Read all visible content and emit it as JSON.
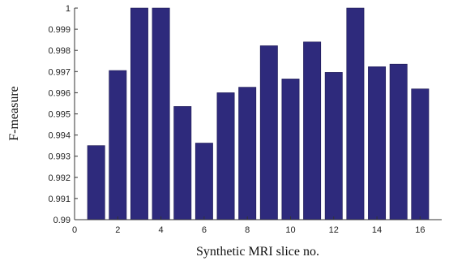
{
  "chart_data": {
    "type": "bar",
    "title": "",
    "xlabel": "Synthetic MRI slice no.",
    "ylabel": "F-measure",
    "xlim": [
      0,
      17
    ],
    "ylim": [
      0.99,
      1
    ],
    "xticks": [
      0,
      2,
      4,
      6,
      8,
      10,
      12,
      14,
      16
    ],
    "yticks": [
      0.99,
      0.991,
      0.992,
      0.993,
      0.994,
      0.995,
      0.996,
      0.997,
      0.998,
      0.999,
      1
    ],
    "ytick_labels": [
      "0.99",
      "0.991",
      "0.992",
      "0.993",
      "0.994",
      "0.995",
      "0.996",
      "0.997",
      "0.998",
      "0.999",
      "1"
    ],
    "categories": [
      1,
      2,
      3,
      4,
      5,
      6,
      7,
      8,
      9,
      10,
      11,
      12,
      13,
      14,
      15,
      16
    ],
    "values": [
      0.9935,
      0.99705,
      1.0,
      1.0,
      0.99535,
      0.99362,
      0.996,
      0.99626,
      0.99822,
      0.99665,
      0.9984,
      0.99696,
      1.0,
      0.99723,
      0.99735,
      0.99618
    ],
    "bar_color": "#2e2a7c",
    "grid": false,
    "legend": "none"
  }
}
